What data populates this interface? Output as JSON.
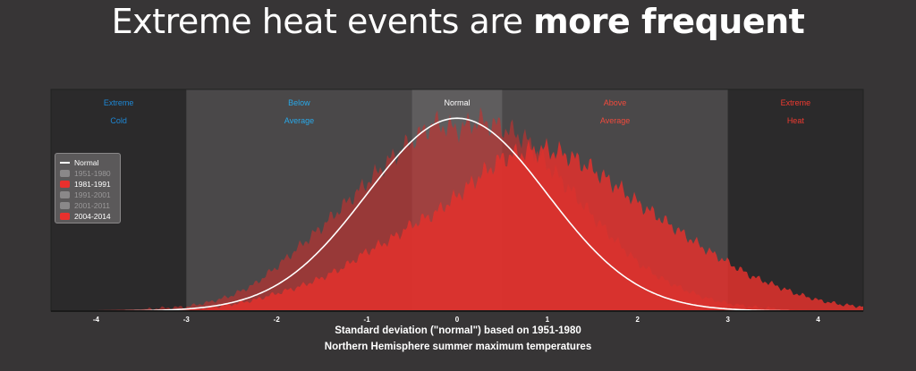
{
  "title": {
    "regular": "Extreme heat events are ",
    "bold": "more frequent"
  },
  "chart_data": {
    "type": "area",
    "xlim": [
      -4.5,
      4.5
    ],
    "x_ticks": [
      -4,
      -3,
      -2,
      -1,
      0,
      1,
      2,
      3,
      4
    ],
    "xlabel": "Standard deviation (\"normal\") based on 1951-1980",
    "xlabel2": "Northern Hemisphere summer maximum temperatures",
    "bands": [
      {
        "line1": "Extreme",
        "line2": "Cold",
        "from": -4.5,
        "to": -3,
        "color": "#2b2a2b",
        "text_color": "#1e88d6"
      },
      {
        "line1": "Below",
        "line2": "Average",
        "from": -3,
        "to": -0.5,
        "color": "#4a4849",
        "text_color": "#29a8e8"
      },
      {
        "line1": "Normal",
        "line2": "",
        "from": -0.5,
        "to": 0.5,
        "color": "#5f5d5e",
        "text_color": "#ffffff"
      },
      {
        "line1": "Above",
        "line2": "Average",
        "from": 0.5,
        "to": 3,
        "color": "#4a4849",
        "text_color": "#f04a3c"
      },
      {
        "line1": "Extreme",
        "line2": "Heat",
        "from": 3,
        "to": 4.5,
        "color": "#2b2a2b",
        "text_color": "#f03a30"
      }
    ],
    "legend": [
      {
        "label": "Normal",
        "type": "line",
        "color": "#ffffff",
        "active": true
      },
      {
        "label": "1951-1980",
        "type": "area",
        "color": "#8a8889",
        "active": false
      },
      {
        "label": "1981-1991",
        "type": "area",
        "color": "#e8302d",
        "active": true
      },
      {
        "label": "1991-2001",
        "type": "area",
        "color": "#8a8889",
        "active": false
      },
      {
        "label": "2001-2011",
        "type": "area",
        "color": "#8a8889",
        "active": false
      },
      {
        "label": "2004-2014",
        "type": "area",
        "color": "#e8302d",
        "active": true
      }
    ],
    "normal_curve": {
      "mean": 0,
      "sd": 1,
      "peak_fraction": 0.87
    },
    "series": [
      {
        "name": "1981-1991",
        "x": [
          -4.5,
          -4.0,
          -3.5,
          -3.0,
          -2.75,
          -2.5,
          -2.25,
          -2.0,
          -1.75,
          -1.5,
          -1.25,
          -1.0,
          -0.75,
          -0.5,
          -0.25,
          0,
          0.25,
          0.5,
          0.75,
          1.0,
          1.25,
          1.5,
          1.75,
          2.0,
          2.25,
          2.5,
          2.75,
          3.0,
          3.25,
          3.5,
          3.75,
          4.0,
          4.25,
          4.5
        ],
        "y": [
          0.0,
          0.004,
          0.008,
          0.02,
          0.04,
          0.07,
          0.12,
          0.2,
          0.29,
          0.38,
          0.48,
          0.58,
          0.68,
          0.77,
          0.85,
          0.82,
          0.86,
          0.83,
          0.78,
          0.66,
          0.55,
          0.43,
          0.32,
          0.22,
          0.15,
          0.1,
          0.06,
          0.035,
          0.02,
          0.012,
          0.006,
          0.003,
          0.001,
          0.0
        ]
      },
      {
        "name": "2004-2014",
        "x": [
          -4.5,
          -4.0,
          -3.5,
          -3.0,
          -2.75,
          -2.5,
          -2.25,
          -2.0,
          -1.75,
          -1.5,
          -1.25,
          -1.0,
          -0.75,
          -0.5,
          -0.25,
          0,
          0.25,
          0.5,
          0.75,
          1.0,
          1.25,
          1.5,
          1.75,
          2.0,
          2.25,
          2.5,
          2.75,
          3.0,
          3.25,
          3.5,
          3.75,
          4.0,
          4.25,
          4.5
        ],
        "y": [
          0.0,
          0.002,
          0.004,
          0.008,
          0.015,
          0.03,
          0.05,
          0.08,
          0.11,
          0.15,
          0.2,
          0.27,
          0.32,
          0.39,
          0.44,
          0.52,
          0.61,
          0.69,
          0.72,
          0.73,
          0.7,
          0.64,
          0.57,
          0.49,
          0.42,
          0.35,
          0.28,
          0.22,
          0.16,
          0.12,
          0.08,
          0.05,
          0.03,
          0.02
        ]
      }
    ]
  }
}
